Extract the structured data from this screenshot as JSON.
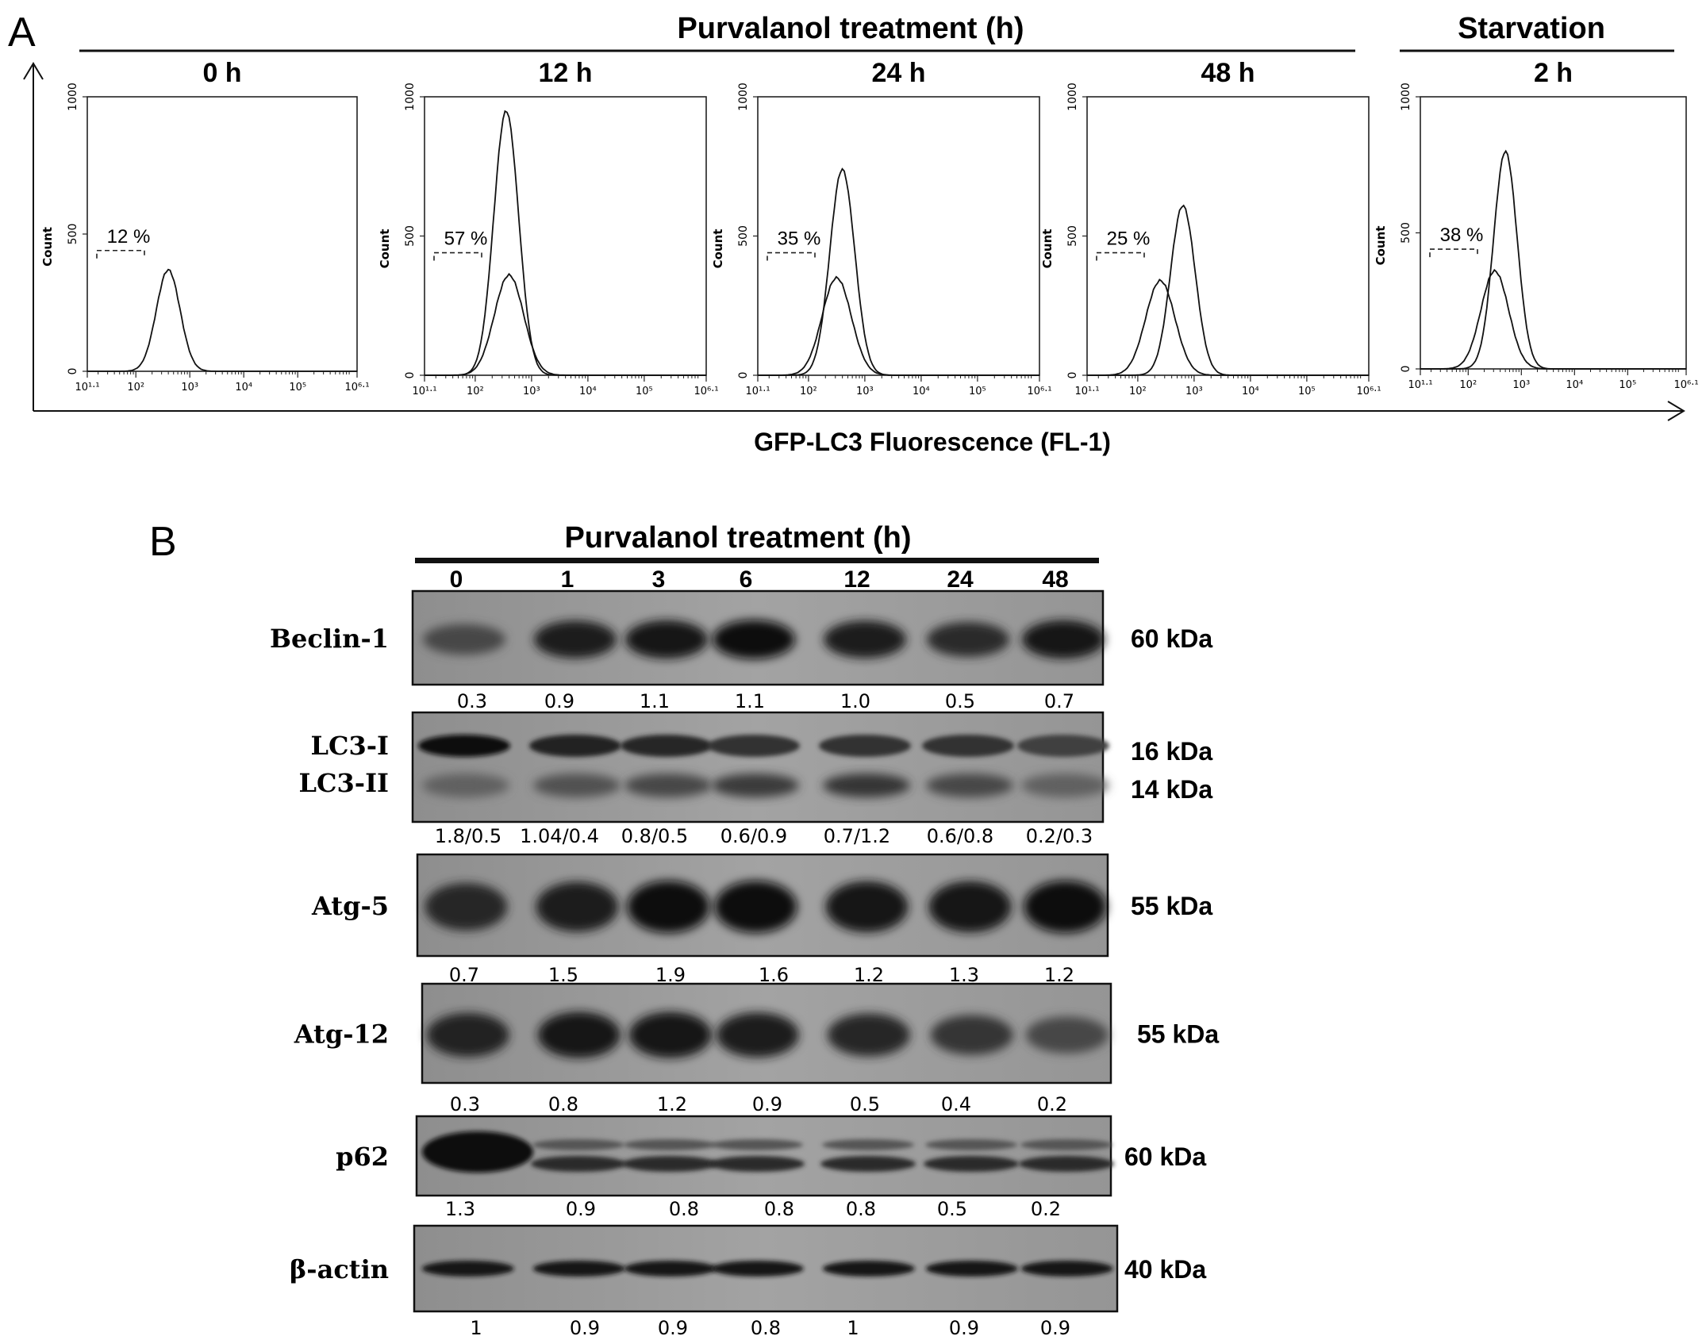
{
  "panel_a": {
    "label": "A",
    "header_treatment": "Purvalanol treatment (h)",
    "header_starvation": "Starvation",
    "x_axis_label": "GFP-LC3 Fluorescence (FL-1)",
    "y_label": "Count",
    "y_ticks": [
      "0",
      "500",
      "1000"
    ],
    "x_ticks": [
      "10¹·¹",
      "10²",
      "10³",
      "10⁴",
      "10⁵",
      "10⁶·¹"
    ],
    "plots": [
      {
        "title": "0 h",
        "gate_pct": "12 %",
        "traces": [
          {
            "center": 2.6,
            "peak": 370
          }
        ]
      },
      {
        "title": "12 h",
        "gate_pct": "57 %",
        "traces": [
          {
            "center": 2.55,
            "peak": 950
          },
          {
            "center": 2.6,
            "peak": 360
          }
        ]
      },
      {
        "title": "24 h",
        "gate_pct": "35 %",
        "traces": [
          {
            "center": 2.6,
            "peak": 740
          },
          {
            "center": 2.5,
            "peak": 350
          }
        ]
      },
      {
        "title": "48 h",
        "gate_pct": "25 %",
        "traces": [
          {
            "center": 2.8,
            "peak": 610
          },
          {
            "center": 2.4,
            "peak": 340
          }
        ]
      },
      {
        "title": "2 h",
        "gate_pct": "38 %",
        "traces": [
          {
            "center": 2.7,
            "peak": 800
          },
          {
            "center": 2.5,
            "peak": 360
          }
        ]
      }
    ]
  },
  "panel_b": {
    "label": "B",
    "header": "Purvalanol treatment (h)",
    "lanes": [
      "0",
      "1",
      "3",
      "6",
      "12",
      "24",
      "48"
    ],
    "blots": [
      {
        "name": "Beclin-1",
        "kda": "60 kDa",
        "intensity": [
          0.45,
          0.85,
          0.9,
          0.95,
          0.85,
          0.7,
          0.9
        ],
        "quant": [
          "0.3",
          "0.9",
          "1.1",
          "1.1",
          "1.0",
          "0.5",
          "0.7"
        ]
      },
      {
        "name": "LC3-I",
        "name2": "LC3-II",
        "kda": "16 kDa",
        "kda2": "14 kDa",
        "quant": [
          "1.8/0.5",
          "1.04/0.4",
          "0.8/0.5",
          "0.6/0.9",
          "0.7/1.2",
          "0.6/0.8",
          "0.2/0.3"
        ]
      },
      {
        "name": "Atg-5",
        "kda": "55 kDa",
        "intensity": [
          0.75,
          0.85,
          0.95,
          0.95,
          0.9,
          0.9,
          0.95
        ],
        "quant": [
          "0.7",
          "1.5",
          "1.9",
          "1.6",
          "1.2",
          "1.3",
          "1.2"
        ]
      },
      {
        "name": "Atg-12",
        "kda": "55 kDa",
        "intensity": [
          0.8,
          0.9,
          0.9,
          0.85,
          0.75,
          0.6,
          0.45
        ],
        "quant": [
          "0.3",
          "0.8",
          "1.2",
          "0.9",
          "0.5",
          "0.4",
          "0.2"
        ]
      },
      {
        "name": "p62",
        "kda": "60 kDa",
        "quant": [
          "1.3",
          "0.9",
          "0.8",
          "0.8",
          "0.8",
          "0.5",
          "0.2"
        ]
      },
      {
        "name": "β-actin",
        "kda": "40 kDa",
        "quant": [
          "1",
          "0.9",
          "0.9",
          "0.8",
          "1",
          "0.9",
          "0.9"
        ]
      }
    ]
  }
}
